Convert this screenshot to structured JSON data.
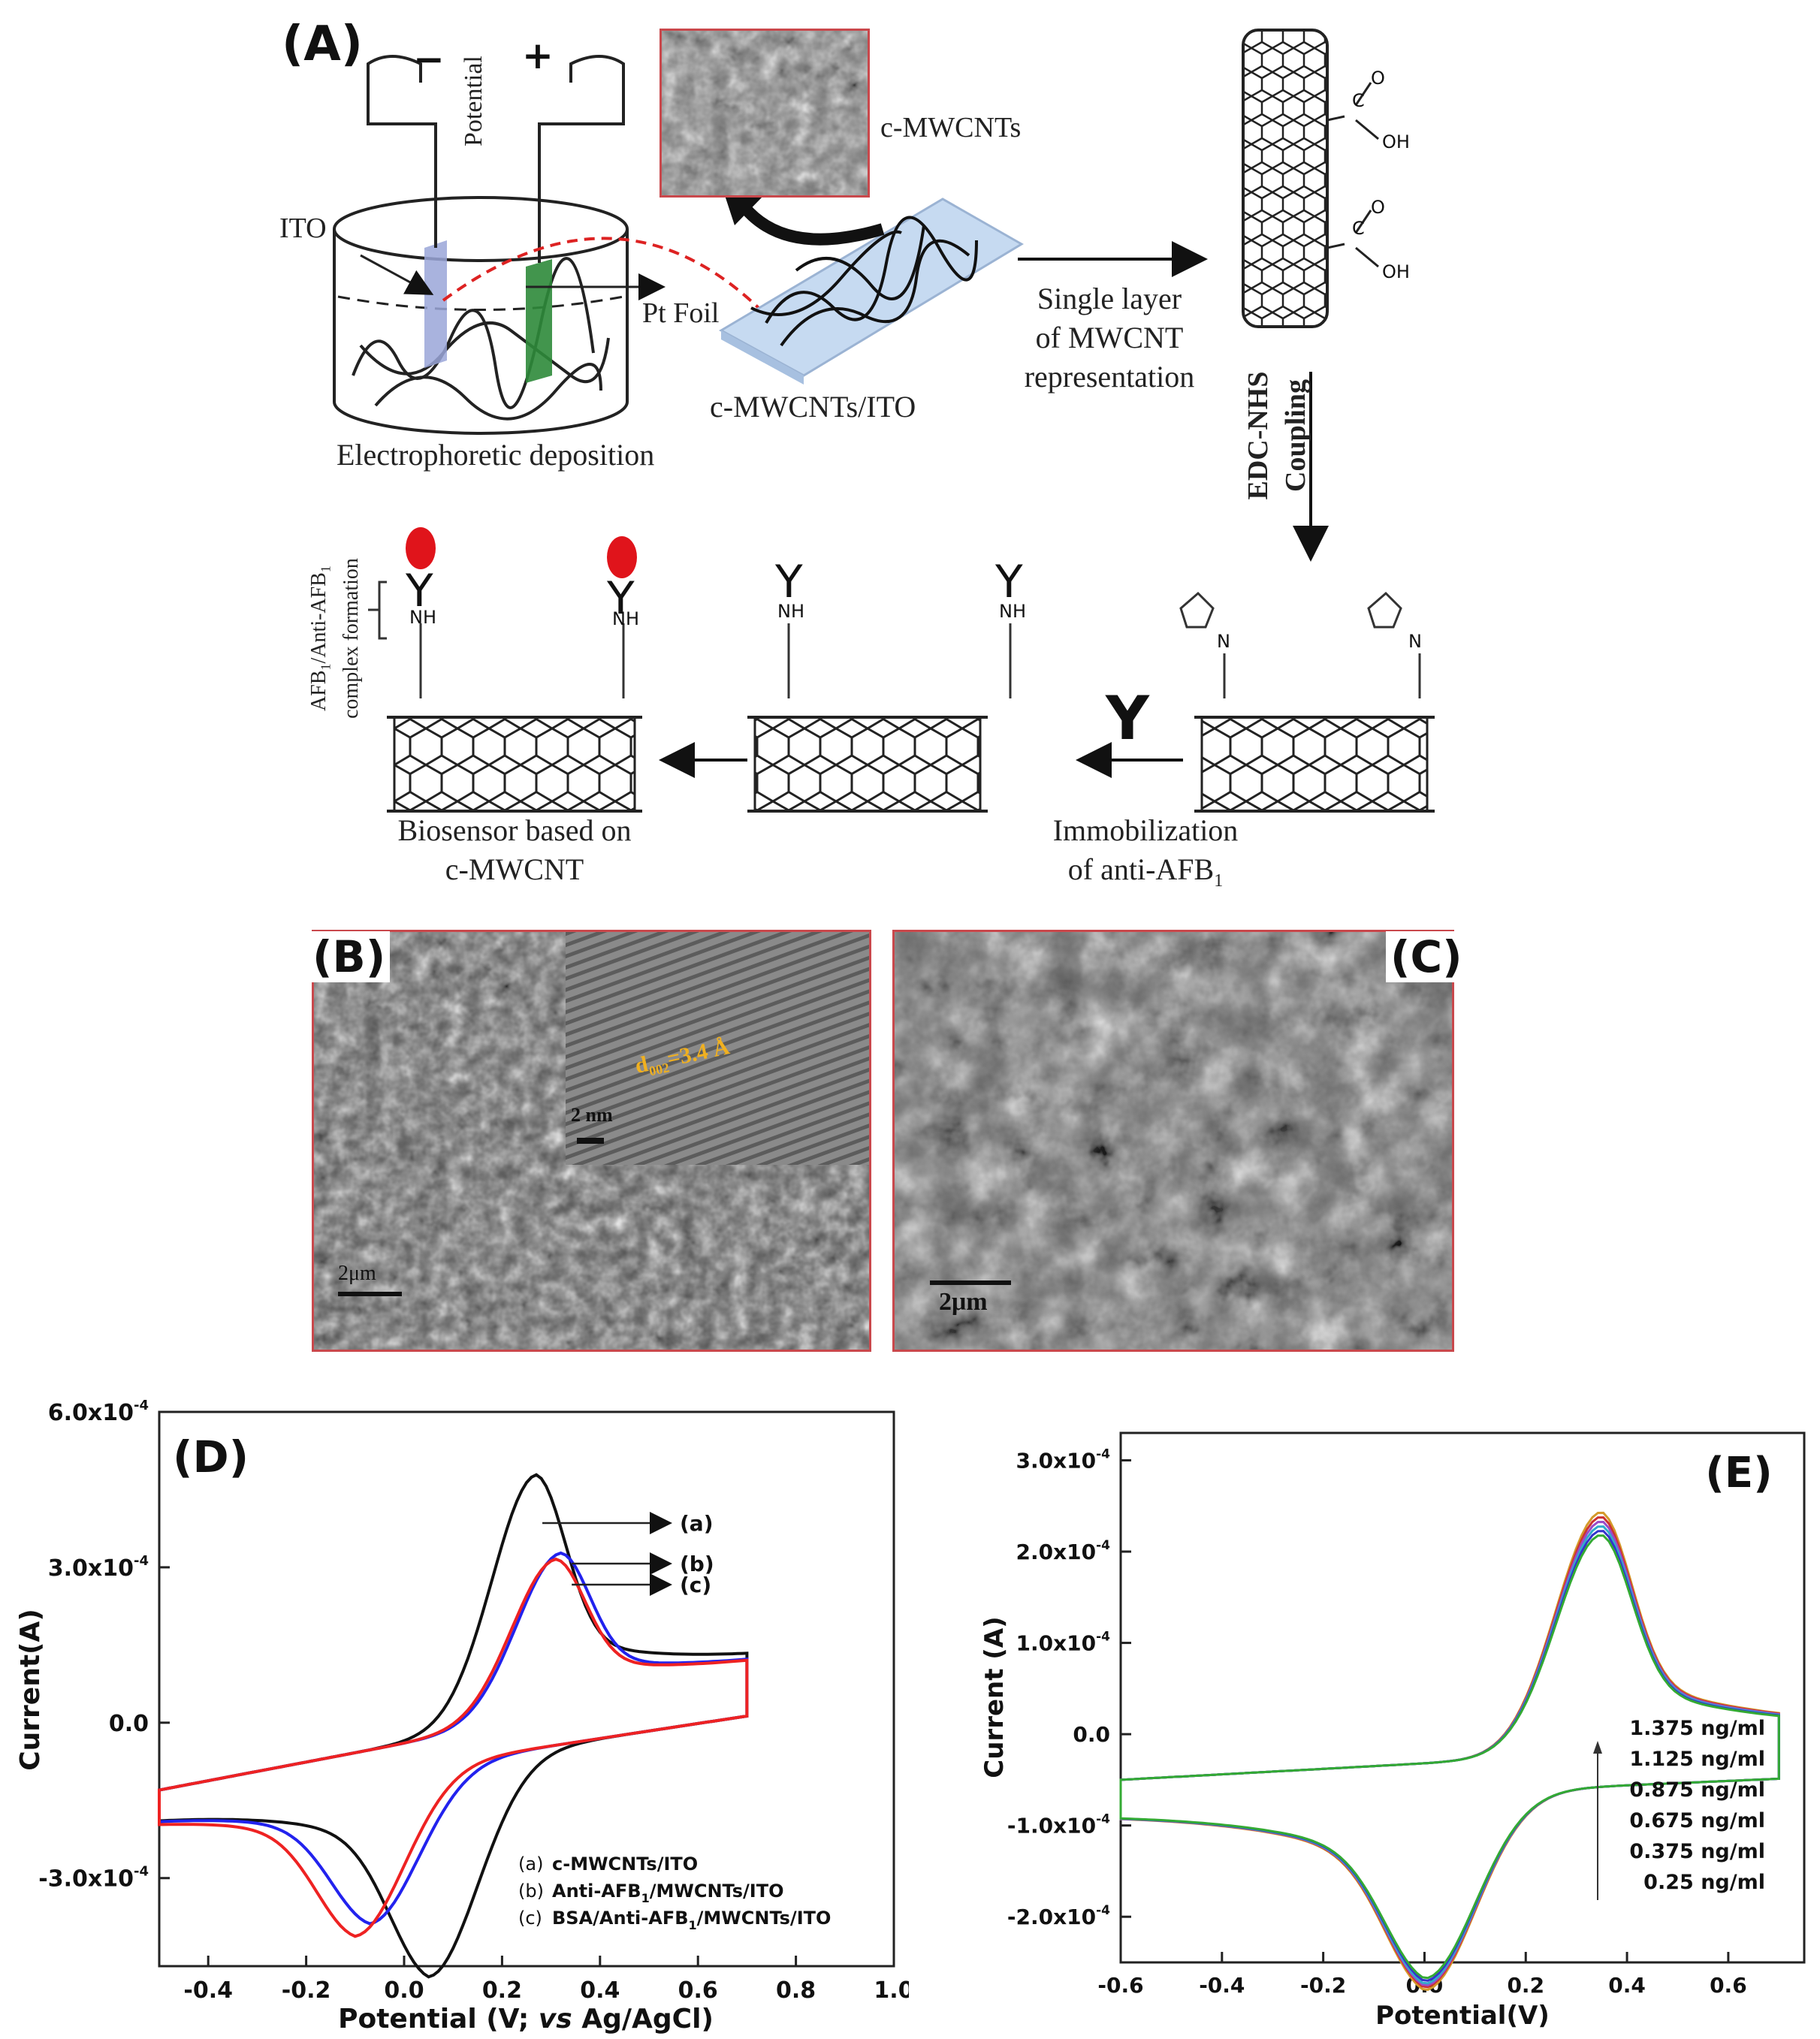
{
  "panelA": {
    "label": "(A)",
    "potential": "Potential",
    "minus": "−",
    "plus": "+",
    "ito": "ITO",
    "pt_foil": "Pt Foil",
    "deposition": "Electrophoretic deposition",
    "sem_label": "c-MWCNTs",
    "electrode_label": "c-MWCNTs/ITO",
    "single_layer": [
      "Single layer",
      "of MWCNT",
      "representation"
    ],
    "edc": [
      "EDC-NHS",
      "Coupling"
    ],
    "immobilization": [
      "Immobilization",
      "of anti-AFB",
      "1"
    ],
    "biosensor": [
      "Biosensor based on",
      "c-MWCNT"
    ],
    "complex": [
      "AFB",
      "1",
      "/Anti-AFB",
      "1",
      "complex formation"
    ],
    "antibody_symbol": "Y",
    "o_atom": "O",
    "oh_group": "OH",
    "nh_group": "NH",
    "n_atom": "N",
    "c_atom": "C"
  },
  "panelB": {
    "label": "(B)",
    "inset_spacing": "d",
    "inset_spacing_sub": "002",
    "inset_spacing_val": "=3.4 Å",
    "inset_scale": "2 nm",
    "scale": "2μm"
  },
  "panelC": {
    "label": "(C)",
    "scale": "2μm"
  },
  "chart_data": [
    {
      "type": "line",
      "panel": "(D)",
      "xlabel_parts": [
        "Potential (V; ",
        "vs",
        " Ag/AgCl)"
      ],
      "ylabel": "Current(A)",
      "xlim": [
        -0.5,
        1.0
      ],
      "ylim": [
        -0.00047,
        0.0006
      ],
      "x_ticks": [
        "-0.4",
        "-0.2",
        "0.0",
        "0.2",
        "0.4",
        "0.6",
        "0.8",
        "1.0"
      ],
      "y_ticks": [
        "6.0x10",
        "3.0x10",
        "0.0",
        "-3.0x10"
      ],
      "y_tick_exponent": "-4",
      "curve_tags": [
        "(a)",
        "(b)",
        "(c)"
      ],
      "legend": [
        {
          "tag": "(a)",
          "text": "c-MWCNTs/ITO"
        },
        {
          "tag": "(b)",
          "text": "Anti-AFB",
          "sub": "1",
          "rest": "/MWCNTs/ITO"
        },
        {
          "tag": "(c)",
          "text": "BSA/Anti-AFB",
          "sub": "1",
          "rest": "/MWCNTs/ITO"
        }
      ],
      "series": [
        {
          "tag": "(a)",
          "color": "#111111",
          "ipa": 0.00047,
          "epa": 0.27,
          "ipc": -0.00041,
          "epc": 0.05
        },
        {
          "tag": "(b)",
          "color": "#2222ee",
          "ipa": 0.00031,
          "epa": 0.32,
          "ipc": -0.00029,
          "epc": -0.07
        },
        {
          "tag": "(c)",
          "color": "#ee2222",
          "ipa": 0.0003,
          "epa": 0.31,
          "ipc": -0.00031,
          "epc": -0.1
        }
      ]
    },
    {
      "type": "line",
      "panel": "(E)",
      "xlabel": "Potential(V)",
      "ylabel": "Current (A)",
      "xlim": [
        -0.6,
        0.75
      ],
      "ylim": [
        -0.00025,
        0.00033
      ],
      "x_ticks": [
        "-0.6",
        "-0.4",
        "-0.2",
        "0.0",
        "0.2",
        "0.4",
        "0.6"
      ],
      "y_ticks": [
        "3.0x10",
        "2.0x10",
        "1.0x10",
        "0.0",
        "-1.0x10",
        "-2.0x10"
      ],
      "y_tick_exponent": "-4",
      "legend": [
        "1.375  ng/ml",
        "1.125  ng/ml",
        "0.875  ng/ml",
        "0.675  ng/ml",
        "0.375  ng/ml",
        "0.25  ng/ml"
      ],
      "series": [
        {
          "conc": 1.375,
          "color": "#d49a2a",
          "ipa": 0.000265,
          "ipc": -0.000215
        },
        {
          "conc": 1.125,
          "color": "#cc3333",
          "ipa": 0.00026,
          "ipc": -0.000212
        },
        {
          "conc": 0.875,
          "color": "#9a4ac8",
          "ipa": 0.000255,
          "ipc": -0.00021
        },
        {
          "conc": 0.675,
          "color": "#33aacc",
          "ipa": 0.00025,
          "ipc": -0.000208
        },
        {
          "conc": 0.375,
          "color": "#3333cc",
          "ipa": 0.000245,
          "ipc": -0.000205
        },
        {
          "conc": 0.25,
          "color": "#33aa33",
          "ipa": 0.00024,
          "ipc": -0.000202
        }
      ]
    }
  ]
}
